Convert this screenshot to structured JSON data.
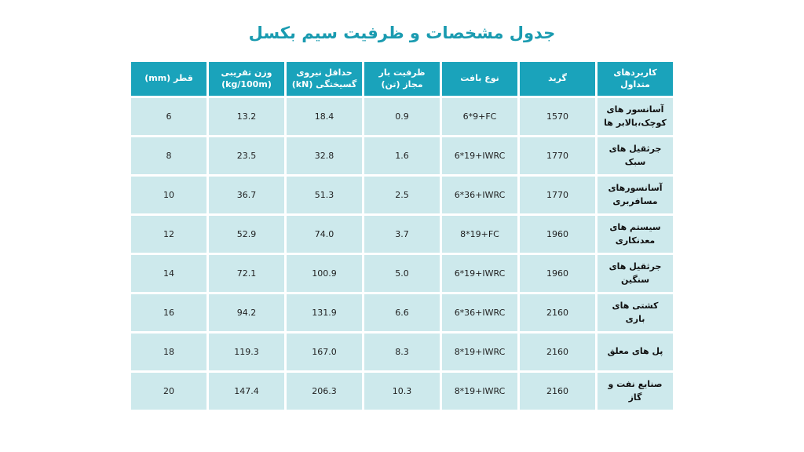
{
  "title": "جدول مشخصات و ظرفیت سیم بکسل",
  "table": {
    "headers": [
      "کاربردهای متداول",
      "گرید",
      "نوع بافت",
      "ظرفیت بار مجاز (تن)",
      "حداقل نیروی گسیختگی (kN)",
      "وزن تقریبی (kg/100m)",
      "قطر (mm)"
    ],
    "rows": [
      {
        "use": "آسانسور های کوچک،بالابر ها",
        "grade": "1570",
        "weave": "6*9+FC",
        "capacity": "0.9",
        "breaking": "18.4",
        "weight": "13.2",
        "diameter": "6"
      },
      {
        "use": "جرثقیل های سبک",
        "grade": "1770",
        "weave": "6*19+IWRC",
        "capacity": "1.6",
        "breaking": "32.8",
        "weight": "23.5",
        "diameter": "8"
      },
      {
        "use": "آسانسورهای مسافربری",
        "grade": "1770",
        "weave": "6*36+IWRC",
        "capacity": "2.5",
        "breaking": "51.3",
        "weight": "36.7",
        "diameter": "10"
      },
      {
        "use": "سیستم های معدنکاری",
        "grade": "1960",
        "weave": "8*19+FC",
        "capacity": "3.7",
        "breaking": "74.0",
        "weight": "52.9",
        "diameter": "12"
      },
      {
        "use": "جرثقیل های سنگین",
        "grade": "1960",
        "weave": "6*19+IWRC",
        "capacity": "5.0",
        "breaking": "100.9",
        "weight": "72.1",
        "diameter": "14"
      },
      {
        "use": "کشتی های باری",
        "grade": "2160",
        "weave": "6*36+IWRC",
        "capacity": "6.6",
        "breaking": "131.9",
        "weight": "94.2",
        "diameter": "16"
      },
      {
        "use": "پل های معلق",
        "grade": "2160",
        "weave": "8*19+IWRC",
        "capacity": "8.3",
        "breaking": "167.0",
        "weight": "119.3",
        "diameter": "18"
      },
      {
        "use": "صنایع نفت و گاز",
        "grade": "2160",
        "weave": "8*19+IWRC",
        "capacity": "10.3",
        "breaking": "206.3",
        "weight": "147.4",
        "diameter": "20"
      }
    ]
  },
  "colors": {
    "title": "#1a9bb0",
    "header_bg": "#1aa3bb",
    "cell_bg": "#cde9ec"
  }
}
